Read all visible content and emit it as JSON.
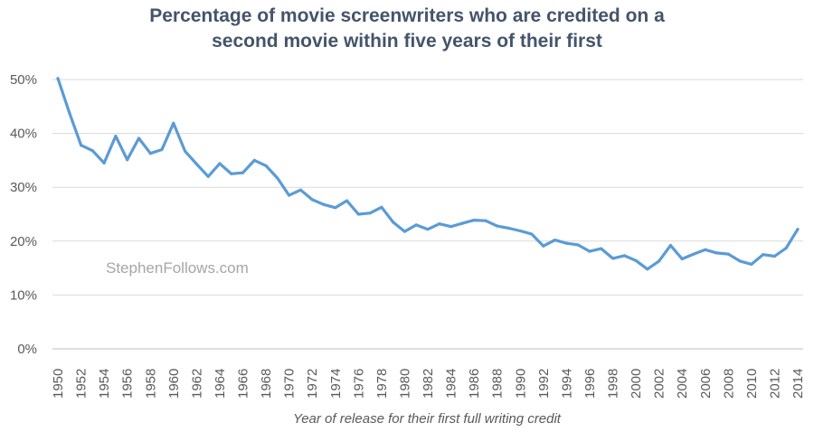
{
  "chart_data": {
    "type": "line",
    "title_lines": [
      "Percentage of movie screenwriters who are credited on a",
      "second movie within five years of their first"
    ],
    "xlabel": "Year of release for their first full writing credit",
    "ylabel": "",
    "ylim": [
      0,
      50
    ],
    "y_ticks": [
      "0%",
      "10%",
      "20%",
      "30%",
      "40%",
      "50%"
    ],
    "x_ticks": [
      "1950",
      "1952",
      "1954",
      "1956",
      "1958",
      "1960",
      "1962",
      "1964",
      "1966",
      "1968",
      "1970",
      "1972",
      "1974",
      "1976",
      "1978",
      "1980",
      "1982",
      "1984",
      "1986",
      "1988",
      "1990",
      "1992",
      "1994",
      "1996",
      "1998",
      "2000",
      "2002",
      "2004",
      "2006",
      "2008",
      "2010",
      "2012",
      "2014"
    ],
    "watermark": "StephenFollows.com",
    "grid": true,
    "line_color": "#5b9bd5",
    "series": [
      {
        "x": [
          1950,
          1951,
          1952,
          1953,
          1954,
          1955,
          1956,
          1957,
          1958,
          1959,
          1960,
          1961,
          1962,
          1963,
          1964,
          1965,
          1966,
          1967,
          1968,
          1969,
          1970,
          1971,
          1972,
          1973,
          1974,
          1975,
          1976,
          1977,
          1978,
          1979,
          1980,
          1981,
          1982,
          1983,
          1984,
          1985,
          1986,
          1987,
          1988,
          1989,
          1990,
          1991,
          1992,
          1993,
          1994,
          1995,
          1996,
          1997,
          1998,
          1999,
          2000,
          2001,
          2002,
          2003,
          2004,
          2005,
          2006,
          2007,
          2008,
          2009,
          2010,
          2011,
          2012,
          2013,
          2014
        ],
        "values": [
          50.2,
          43.8,
          37.8,
          36.8,
          34.5,
          39.5,
          35.1,
          39.1,
          36.3,
          37.0,
          41.9,
          36.7,
          34.3,
          32.0,
          34.4,
          32.5,
          32.7,
          35.0,
          34.0,
          31.7,
          28.5,
          29.5,
          27.7,
          26.8,
          26.2,
          27.5,
          25.0,
          25.2,
          26.3,
          23.5,
          21.8,
          23.0,
          22.2,
          23.2,
          22.7,
          23.3,
          23.9,
          23.8,
          22.8,
          22.4,
          21.9,
          21.3,
          19.1,
          20.2,
          19.6,
          19.3,
          18.1,
          18.6,
          16.8,
          17.3,
          16.4,
          14.8,
          16.3,
          19.2,
          16.7,
          17.6,
          18.4,
          17.8,
          17.6,
          16.3,
          15.7,
          17.5,
          17.2,
          18.7,
          22.2
        ]
      }
    ]
  }
}
